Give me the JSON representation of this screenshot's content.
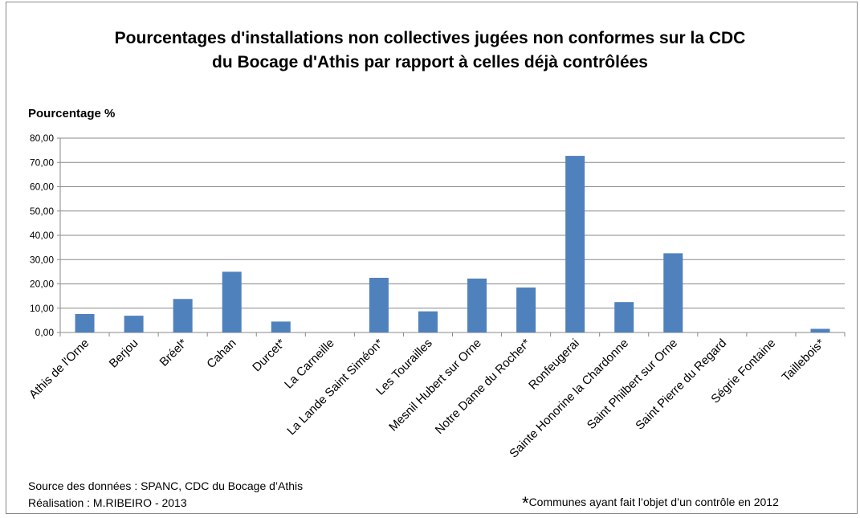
{
  "chart_data": {
    "type": "bar",
    "title_line1": "Pourcentages d'installations non collectives jugées non conformes sur la CDC",
    "title_line2": "du Bocage d'Athis par rapport à celles déjà contrôlées",
    "ylabel": "Pourcentage %",
    "xlabel": "",
    "ylim": [
      0,
      80
    ],
    "yticks": [
      "0,00",
      "10,00",
      "20,00",
      "30,00",
      "40,00",
      "50,00",
      "60,00",
      "70,00",
      "80,00"
    ],
    "grid": true,
    "bar_color": "#4f81bd",
    "categories": [
      "Athis de l'Orne",
      "Berjou",
      "Bréel*",
      "Cahan",
      "Durcet*",
      "La Carneille",
      "La Lande Saint Siméon*",
      "Les Tourailles",
      "Mesnil Hubert sur Orne",
      "Notre Dame du Rocher*",
      "Ronfeugerai",
      "Sainte Honorine la Chardonne",
      "Saint Philbert sur Orne",
      "Saint Pierre du Regard",
      "Ségrie Fontaine",
      "Taillebois*"
    ],
    "values": [
      7.6,
      6.9,
      13.8,
      25.0,
      4.5,
      0,
      22.5,
      8.7,
      22.2,
      18.5,
      72.7,
      12.5,
      32.6,
      0,
      0,
      1.5
    ]
  },
  "source_text": "Source des données : SPANC, CDC du Bocage d’Athis",
  "credit_text": "Réalisation : M.RIBEIRO - 2013",
  "footnote_star": "*",
  "footnote_text": "Communes ayant fait l’objet d’un contrôle en 2012"
}
